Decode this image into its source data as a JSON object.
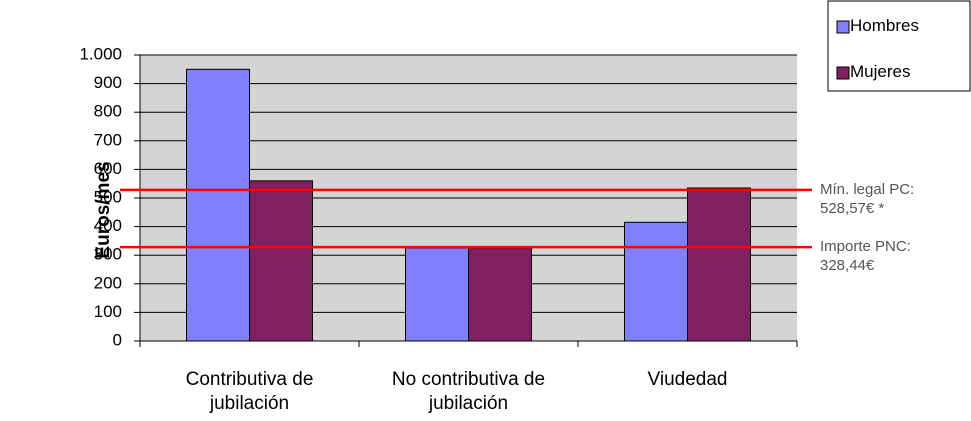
{
  "chart_data": {
    "type": "bar",
    "y_label": "Euros/mes",
    "categories": [
      "Contributiva de\njubilación",
      "No contributiva de\njubilación",
      "Viudedad"
    ],
    "series": [
      {
        "name": "Hombres",
        "color": "#8080ff",
        "values": [
          950,
          325,
          415
        ]
      },
      {
        "name": "Mujeres",
        "color": "#802060",
        "values": [
          560,
          325,
          535
        ]
      }
    ],
    "ylim": [
      0,
      1000
    ],
    "yticks": [
      0,
      100,
      200,
      300,
      400,
      500,
      600,
      700,
      800,
      900,
      {
        "value": 1000,
        "label": "1.000"
      }
    ],
    "grid": true,
    "legend": "top-right",
    "reference_lines": [
      {
        "value": 528.57,
        "label": "Mín. legal PC:\n528,57€ *",
        "color": "#ff0000"
      },
      {
        "value": 328.44,
        "label": "Importe PNC:\n328,44€",
        "color": "#ff0000"
      }
    ]
  }
}
